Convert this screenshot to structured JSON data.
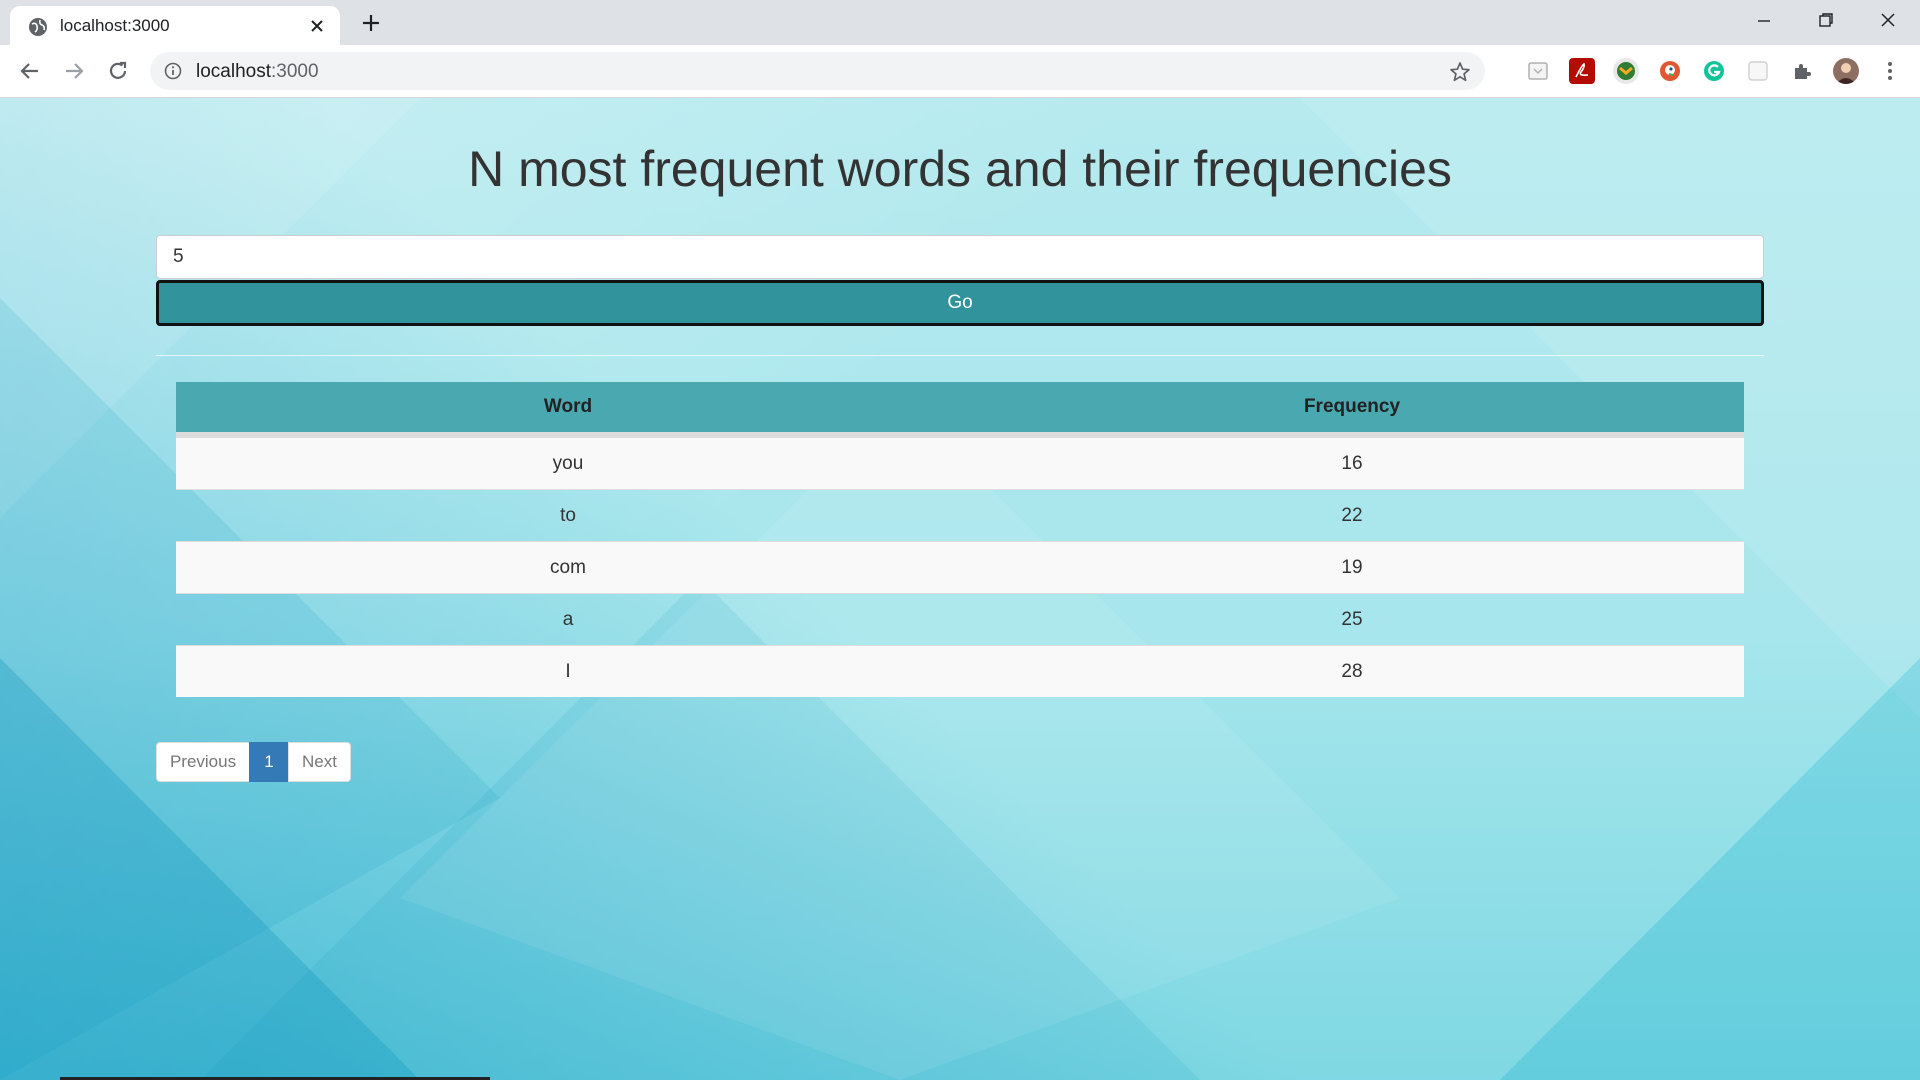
{
  "browser": {
    "tab_title": "localhost:3000",
    "url_host": "localhost",
    "url_port": ":3000",
    "icons": {
      "favicon": "globe-icon",
      "close": "close-icon",
      "new_tab": "plus-icon",
      "minimize": "minimize-icon",
      "restore": "restore-icon",
      "close_window": "close-icon",
      "back": "arrow-left-icon",
      "forward": "arrow-right-icon",
      "reload": "reload-icon",
      "info": "info-icon",
      "bookmark": "star-icon",
      "extensions": "puzzle-icon",
      "menu": "kebab-menu-icon"
    }
  },
  "page": {
    "title": "N most frequent words and their frequencies",
    "input_value": "5",
    "go_label": "Go",
    "table": {
      "headers": [
        "Word",
        "Frequency"
      ],
      "rows": [
        [
          "you",
          "16"
        ],
        [
          "to",
          "22"
        ],
        [
          "com",
          "19"
        ],
        [
          "a",
          "25"
        ],
        [
          "I",
          "28"
        ]
      ]
    },
    "pagination": {
      "previous": "Previous",
      "current": "1",
      "next": "Next"
    }
  },
  "colors": {
    "accent_button": "#31939c",
    "table_header": "#49a8b0",
    "pager_active": "#337ab7"
  }
}
